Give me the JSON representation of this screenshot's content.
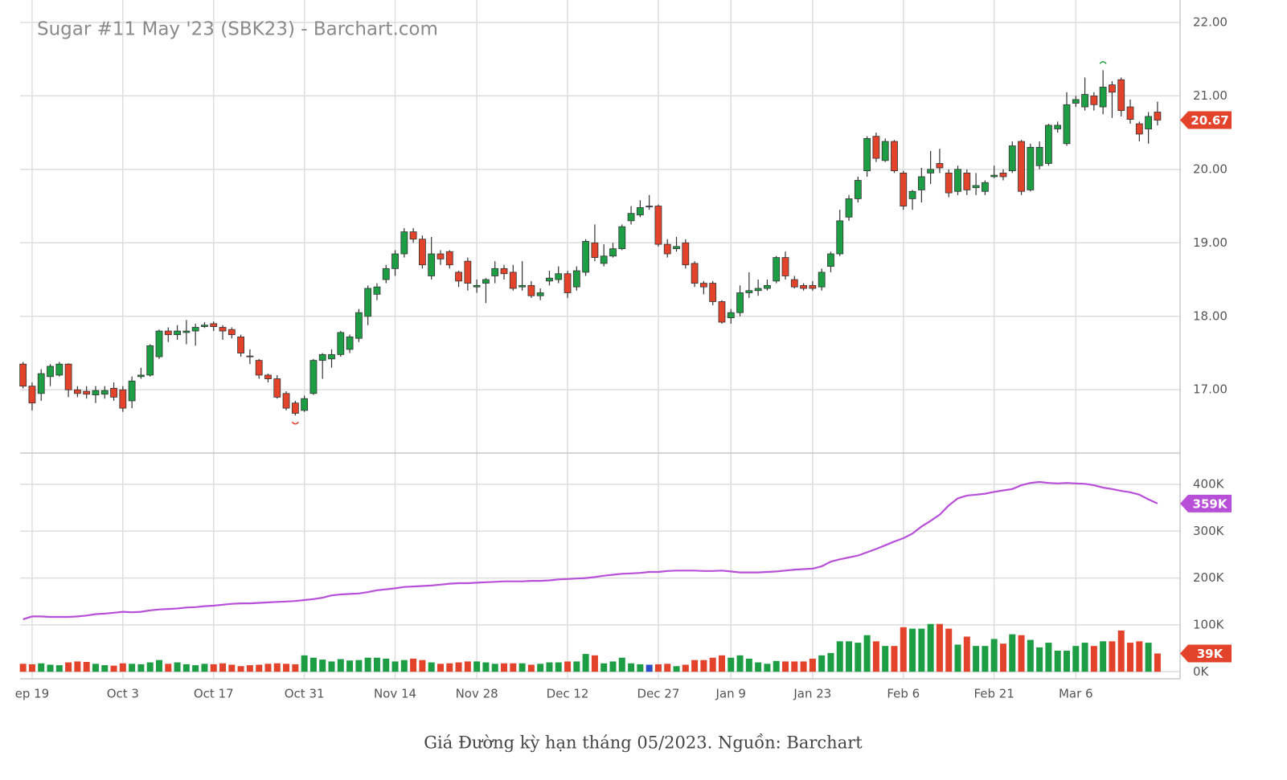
{
  "chart_data": {
    "type": "candlestick",
    "title": "Sugar #11 May '23 (SBK23) - Barchart.com",
    "categories": [
      null,
      "ep 19",
      null,
      null,
      null,
      null,
      null,
      null,
      null,
      null,
      null,
      "Oct 3",
      null,
      null,
      null,
      null,
      null,
      null,
      null,
      null,
      null,
      "Oct 17",
      null,
      null,
      null,
      null,
      null,
      null,
      null,
      null,
      null,
      "Oct 31",
      null,
      null,
      null,
      null,
      null,
      null,
      null,
      null,
      null,
      "Nov 14",
      null,
      null,
      null,
      null,
      null,
      null,
      null,
      null,
      "Nov 28",
      null,
      null,
      null,
      null,
      null,
      null,
      null,
      null,
      null,
      "Dec 12",
      null,
      null,
      null,
      null,
      null,
      null,
      null,
      null,
      null,
      "Dec 27",
      null,
      null,
      null,
      null,
      null,
      null,
      null,
      "Jan 9",
      null,
      null,
      null,
      null,
      null,
      null,
      null,
      null,
      "Jan 23",
      null,
      null,
      null,
      null,
      null,
      null,
      null,
      null,
      null,
      "Feb 6",
      null,
      null,
      null,
      null,
      null,
      null,
      null,
      null,
      null,
      "Feb 21",
      null,
      null,
      null,
      null,
      null,
      null,
      null,
      null,
      "Mar 6",
      null,
      null,
      null,
      null,
      null,
      null,
      null,
      null,
      null
    ],
    "open": [
      17.35,
      17.05,
      16.95,
      17.18,
      17.2,
      17.35,
      17.0,
      16.98,
      16.93,
      16.94,
      17.02,
      17.0,
      16.85,
      17.18,
      17.2,
      17.45,
      17.8,
      17.75,
      17.78,
      17.8,
      17.86,
      17.9,
      17.85,
      17.82,
      17.72,
      17.46,
      17.4,
      17.2,
      17.15,
      16.95,
      16.82,
      16.72,
      16.95,
      17.4,
      17.42,
      17.48,
      17.55,
      17.7,
      18.0,
      18.3,
      18.5,
      18.65,
      18.85,
      19.15,
      19.05,
      18.55,
      18.85,
      18.88,
      18.6,
      18.75,
      18.4,
      18.45,
      18.55,
      18.65,
      18.6,
      18.4,
      18.42,
      18.28,
      18.48,
      18.5,
      18.58,
      18.4,
      18.6,
      19.0,
      18.72,
      18.82,
      18.92,
      19.3,
      19.38,
      19.5,
      19.5,
      18.98,
      18.92,
      19.0,
      18.72,
      18.45,
      18.45,
      18.2,
      17.98,
      18.05,
      18.32,
      18.35,
      18.38,
      18.48,
      18.8,
      18.5,
      18.42,
      18.42,
      18.4,
      18.68,
      18.85,
      19.35,
      19.6,
      19.98,
      20.45,
      20.12,
      20.38,
      19.95,
      19.6,
      19.72,
      19.95,
      20.08,
      19.95,
      19.7,
      19.95,
      19.75,
      19.7,
      19.9,
      19.95,
      19.98,
      20.38,
      19.72,
      20.05,
      20.08,
      20.55,
      20.35,
      20.9,
      20.85,
      21.0,
      20.85,
      21.15,
      21.22,
      20.85,
      20.62,
      20.55,
      20.78
    ],
    "high": [
      17.38,
      17.1,
      17.28,
      17.35,
      17.38,
      17.36,
      17.05,
      17.05,
      17.05,
      17.05,
      17.1,
      17.05,
      17.18,
      17.3,
      17.62,
      17.82,
      17.85,
      17.88,
      17.95,
      17.9,
      17.92,
      17.93,
      17.88,
      17.85,
      17.75,
      17.55,
      17.42,
      17.22,
      17.2,
      16.98,
      16.85,
      16.92,
      17.42,
      17.5,
      17.55,
      17.8,
      17.75,
      18.1,
      18.42,
      18.45,
      18.7,
      18.9,
      19.2,
      19.2,
      19.1,
      19.08,
      18.9,
      18.9,
      18.62,
      18.8,
      18.5,
      18.52,
      18.75,
      18.7,
      18.7,
      18.75,
      18.48,
      18.38,
      18.62,
      18.68,
      18.62,
      18.68,
      19.05,
      19.25,
      18.98,
      19.0,
      19.25,
      19.5,
      19.58,
      19.65,
      19.52,
      19.05,
      19.08,
      19.05,
      18.75,
      18.48,
      18.48,
      18.22,
      18.1,
      18.42,
      18.6,
      18.5,
      18.5,
      18.82,
      18.88,
      18.55,
      18.45,
      18.48,
      18.65,
      18.88,
      19.45,
      19.65,
      19.9,
      20.45,
      20.5,
      20.42,
      20.4,
      19.98,
      19.72,
      20.02,
      20.25,
      20.28,
      20.0,
      20.05,
      20.0,
      19.95,
      19.85,
      20.05,
      20.0,
      20.38,
      20.4,
      20.35,
      20.38,
      20.62,
      20.65,
      21.05,
      21.0,
      21.25,
      21.05,
      21.35,
      21.2,
      21.25,
      20.95,
      20.65,
      20.78,
      20.92
    ],
    "low": [
      17.02,
      16.72,
      16.85,
      17.05,
      17.18,
      16.9,
      16.9,
      16.88,
      16.82,
      16.88,
      16.85,
      16.7,
      16.75,
      17.15,
      17.18,
      17.42,
      17.65,
      17.68,
      17.62,
      17.6,
      17.84,
      17.8,
      17.68,
      17.7,
      17.45,
      17.35,
      17.15,
      17.1,
      16.88,
      16.72,
      16.65,
      16.7,
      16.93,
      17.15,
      17.3,
      17.45,
      17.5,
      17.65,
      17.88,
      18.22,
      18.45,
      18.55,
      18.8,
      19.0,
      18.65,
      18.5,
      18.7,
      18.65,
      18.4,
      18.35,
      18.32,
      18.18,
      18.45,
      18.5,
      18.35,
      18.35,
      18.25,
      18.22,
      18.42,
      18.45,
      18.25,
      18.35,
      18.55,
      18.75,
      18.68,
      18.8,
      18.9,
      19.25,
      19.35,
      19.45,
      18.95,
      18.8,
      18.88,
      18.65,
      18.4,
      18.3,
      18.15,
      17.9,
      17.9,
      18.0,
      18.25,
      18.28,
      18.35,
      18.45,
      18.5,
      18.38,
      18.35,
      18.35,
      18.35,
      18.6,
      18.82,
      19.3,
      19.55,
      19.9,
      20.1,
      20.1,
      19.95,
      19.45,
      19.45,
      19.55,
      19.8,
      19.95,
      19.62,
      19.65,
      19.65,
      19.65,
      19.65,
      19.88,
      19.85,
      19.95,
      19.65,
      19.7,
      20.0,
      20.05,
      20.5,
      20.32,
      20.85,
      20.8,
      20.8,
      20.75,
      20.7,
      20.72,
      20.62,
      20.38,
      20.35,
      20.6
    ],
    "close": [
      17.05,
      16.82,
      17.22,
      17.32,
      17.35,
      17.0,
      16.95,
      16.94,
      16.99,
      16.99,
      16.9,
      16.75,
      17.12,
      17.2,
      17.6,
      17.8,
      17.75,
      17.8,
      17.8,
      17.85,
      17.88,
      17.86,
      17.8,
      17.75,
      17.5,
      17.45,
      17.2,
      17.15,
      16.9,
      16.75,
      16.68,
      16.88,
      17.4,
      17.48,
      17.48,
      17.78,
      17.72,
      18.05,
      18.38,
      18.4,
      18.65,
      18.85,
      19.15,
      19.05,
      18.7,
      18.85,
      18.78,
      18.7,
      18.48,
      18.45,
      18.42,
      18.5,
      18.65,
      18.58,
      18.38,
      18.42,
      18.28,
      18.32,
      18.52,
      18.58,
      18.32,
      18.62,
      19.02,
      18.8,
      18.82,
      18.92,
      19.22,
      19.4,
      19.48,
      19.5,
      18.98,
      18.85,
      18.95,
      18.7,
      18.45,
      18.4,
      18.2,
      17.92,
      18.05,
      18.32,
      18.35,
      18.38,
      18.42,
      18.8,
      18.55,
      18.4,
      18.38,
      18.38,
      18.6,
      18.85,
      19.3,
      19.6,
      19.85,
      20.42,
      20.15,
      20.38,
      19.98,
      19.5,
      19.7,
      19.9,
      20.0,
      20.02,
      19.68,
      20.0,
      19.72,
      19.78,
      19.82,
      19.92,
      19.9,
      20.32,
      19.7,
      20.3,
      20.3,
      20.6,
      20.6,
      20.88,
      20.95,
      21.02,
      20.88,
      21.12,
      21.05,
      20.8,
      20.68,
      20.48,
      20.72,
      20.67
    ],
    "up_color": "#1d9e45",
    "down_color": "#e4432b",
    "unchanged_color": "#2a4cc4",
    "ylim": [
      16.15,
      22.25
    ],
    "yticks": [
      {
        "value": 17,
        "label": "17.00"
      },
      {
        "value": 18,
        "label": "18.00"
      },
      {
        "value": 19,
        "label": "19.00"
      },
      {
        "value": 20,
        "label": "20.00"
      },
      {
        "value": 21,
        "label": "21.00"
      },
      {
        "value": 22,
        "label": "22.00"
      }
    ],
    "grid": true,
    "lower_ylim": [
      -15000,
      465000
    ],
    "lower_yticks": [
      {
        "value": 0,
        "label": "0K"
      },
      {
        "value": 100000,
        "label": "100K"
      },
      {
        "value": 200000,
        "label": "200K"
      },
      {
        "value": 300000,
        "label": "300K"
      },
      {
        "value": 400000,
        "label": "400K"
      }
    ],
    "volume": {
      "values": [
        17000,
        16000,
        18000,
        15000,
        14000,
        20000,
        22000,
        21000,
        17000,
        14000,
        13000,
        18000,
        17000,
        16000,
        20000,
        25000,
        17000,
        20000,
        16000,
        14000,
        17000,
        16000,
        18000,
        15000,
        12000,
        14000,
        15000,
        17000,
        18000,
        17000,
        16000,
        35000,
        30000,
        26000,
        22000,
        27000,
        24000,
        25000,
        30000,
        30000,
        28000,
        22000,
        25000,
        28000,
        25000,
        20000,
        17000,
        18000,
        20000,
        22000,
        22000,
        20000,
        17000,
        18000,
        18000,
        18000,
        15000,
        17000,
        20000,
        20000,
        22000,
        22000,
        38000,
        35000,
        18000,
        22000,
        30000,
        18000,
        16000,
        15000,
        16000,
        17000,
        12000,
        15000,
        25000,
        25000,
        30000,
        35000,
        30000,
        35000,
        28000,
        20000,
        17000,
        23000,
        22000,
        22000,
        22000,
        28000,
        35000,
        40000,
        65000,
        65000,
        62000,
        78000,
        65000,
        55000,
        55000,
        95000,
        92000,
        92000,
        102000,
        102000,
        92000,
        58000,
        75000,
        55000,
        55000,
        70000,
        60000,
        80000,
        78000,
        68000,
        52000,
        62000,
        45000,
        45000,
        55000,
        62000,
        55000,
        65000,
        65000,
        88000,
        62000,
        65000,
        62000,
        39000
      ],
      "last_value_label": "39K"
    },
    "open_interest": {
      "values": [
        112000,
        118000,
        118000,
        117000,
        117000,
        117000,
        118000,
        120000,
        123000,
        124000,
        126000,
        128000,
        127000,
        128000,
        131000,
        133000,
        134000,
        135000,
        137000,
        138000,
        140000,
        141000,
        143000,
        145000,
        146000,
        146000,
        147000,
        148000,
        149000,
        150000,
        151000,
        153000,
        155000,
        158000,
        163000,
        165000,
        166000,
        167000,
        170000,
        174000,
        176000,
        178000,
        181000,
        182000,
        183000,
        184000,
        186000,
        188000,
        189000,
        189000,
        190000,
        191000,
        192000,
        193000,
        193000,
        193000,
        194000,
        194000,
        195000,
        197000,
        198000,
        199000,
        200000,
        202000,
        205000,
        207000,
        209000,
        210000,
        211000,
        213000,
        213000,
        215000,
        216000,
        216000,
        216000,
        215000,
        215000,
        216000,
        214000,
        212000,
        212000,
        212000,
        213000,
        214000,
        216000,
        218000,
        219000,
        220000,
        225000,
        235000,
        240000,
        244000,
        248000,
        255000,
        262000,
        270000,
        278000,
        285000,
        295000,
        310000,
        322000,
        335000,
        355000,
        370000,
        376000,
        378000,
        380000,
        384000,
        387000,
        390000,
        398000,
        403000,
        405000,
        403000,
        402000,
        403000,
        402000,
        401000,
        398000,
        393000,
        390000,
        386000,
        383000,
        378000,
        368000,
        359000
      ],
      "color": "#b84fd8",
      "last_value_label": "359K"
    }
  },
  "caption": "Giá Đường kỳ hạn tháng 05/2023. Nguồn: Barchart"
}
